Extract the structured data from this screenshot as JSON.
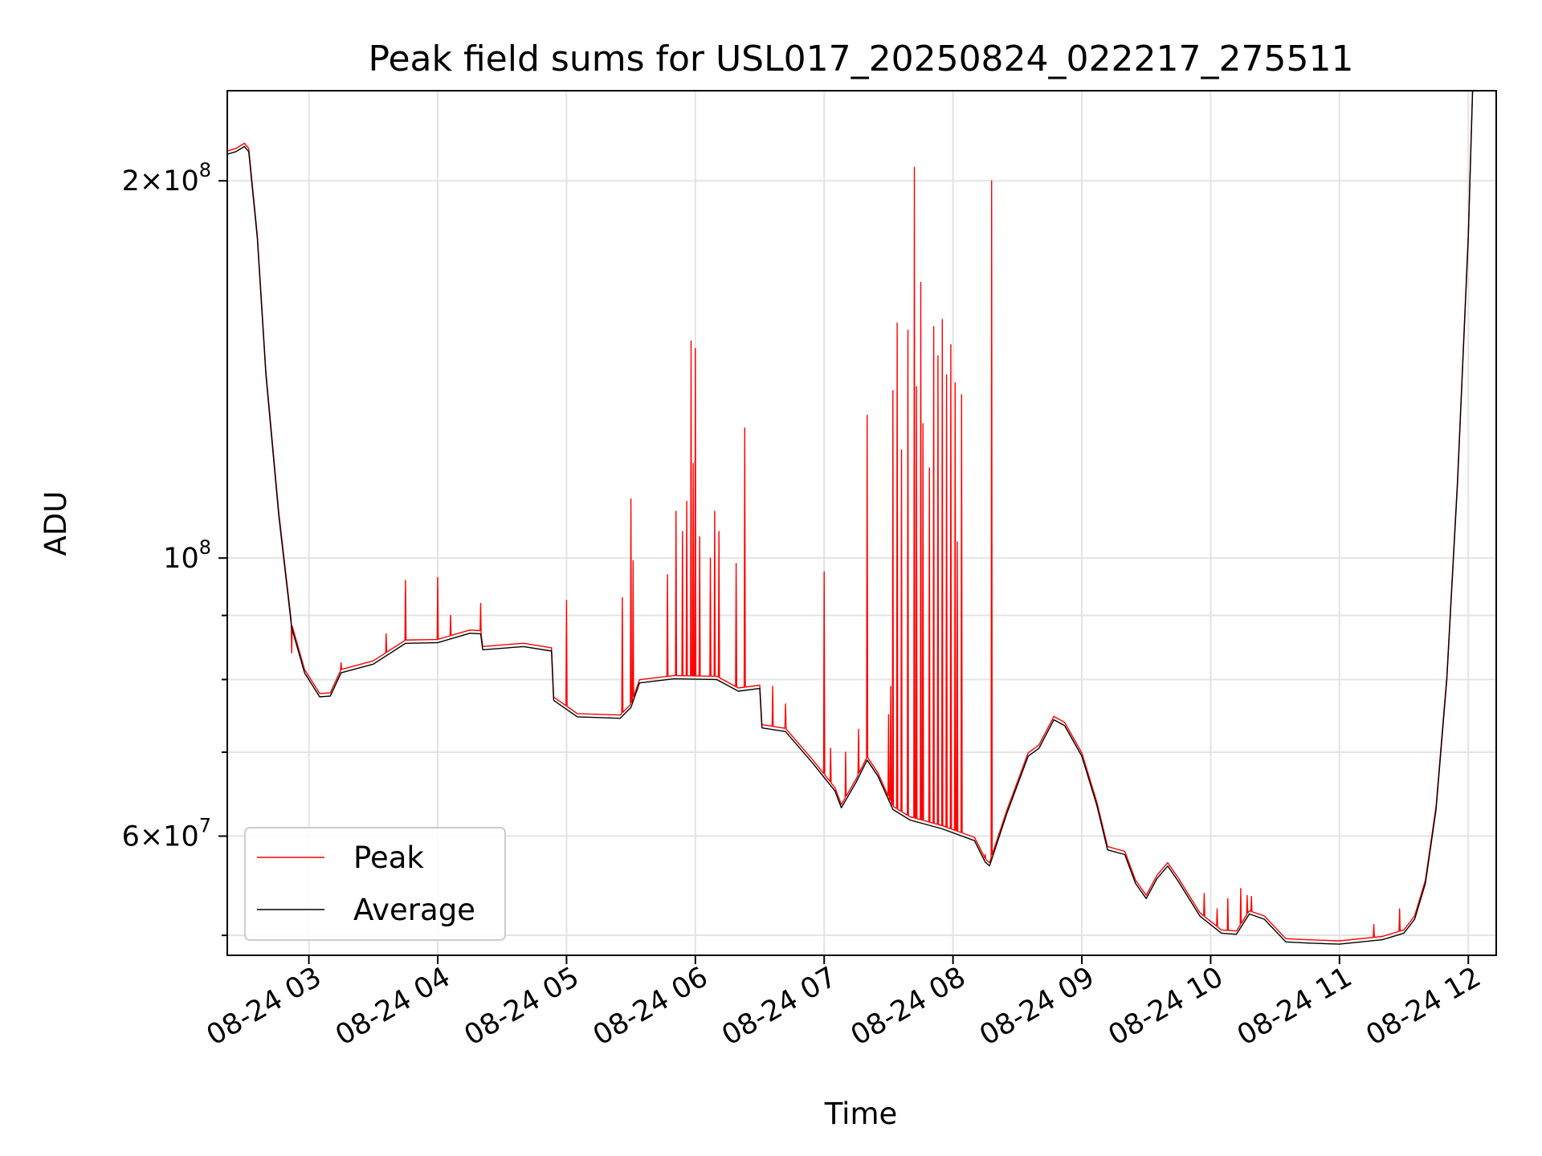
{
  "chart_data": {
    "type": "line",
    "title": "Peak field sums for USL017_20250824_022217_275511",
    "xlabel": "Time",
    "ylabel": "ADU",
    "yscale": "log",
    "grid": true,
    "legend_position": "lower-left",
    "xlim": [
      "2025-08-24 02:22",
      "2025-08-24 12:13"
    ],
    "ylim": [
      48200000,
      236000000
    ],
    "x_ticks": [
      {
        "t": "2025-08-24 03:00",
        "label": "08-24 03"
      },
      {
        "t": "2025-08-24 04:00",
        "label": "08-24 04"
      },
      {
        "t": "2025-08-24 05:00",
        "label": "08-24 05"
      },
      {
        "t": "2025-08-24 06:00",
        "label": "08-24 06"
      },
      {
        "t": "2025-08-24 07:00",
        "label": "08-24 07"
      },
      {
        "t": "2025-08-24 08:00",
        "label": "08-24 08"
      },
      {
        "t": "2025-08-24 09:00",
        "label": "08-24 09"
      },
      {
        "t": "2025-08-24 10:00",
        "label": "08-24 10"
      },
      {
        "t": "2025-08-24 11:00",
        "label": "08-24 11"
      },
      {
        "t": "2025-08-24 12:00",
        "label": "08-24 12"
      }
    ],
    "y_major_ticks": [
      {
        "value": 60000000,
        "mant": "6",
        "exp": "7"
      },
      {
        "value": 100000000,
        "mant": "",
        "exp": "8"
      },
      {
        "value": 200000000,
        "mant": "2",
        "exp": "8"
      }
    ],
    "y_minor_ticks": [
      50000000,
      70000000,
      80000000,
      90000000
    ],
    "series": [
      {
        "name": "Average",
        "color": "#000000",
        "points": [
          [
            "2025-08-24 02:22",
            210000000
          ],
          [
            "2025-08-24 02:26",
            211000000
          ],
          [
            "2025-08-24 02:30",
            213000000
          ],
          [
            "2025-08-24 02:32",
            211000000
          ],
          [
            "2025-08-24 02:36",
            180000000
          ],
          [
            "2025-08-24 02:40",
            140000000
          ],
          [
            "2025-08-24 02:46",
            108000000
          ],
          [
            "2025-08-24 02:52",
            88000000
          ],
          [
            "2025-08-24 02:58",
            81000000
          ],
          [
            "2025-08-24 03:05",
            77500000
          ],
          [
            "2025-08-24 03:10",
            77600000
          ],
          [
            "2025-08-24 03:15",
            81000000
          ],
          [
            "2025-08-24 03:30",
            82300000
          ],
          [
            "2025-08-24 03:45",
            85500000
          ],
          [
            "2025-08-24 04:00",
            85600000
          ],
          [
            "2025-08-24 04:15",
            87100000
          ],
          [
            "2025-08-24 04:20",
            87000000
          ],
          [
            "2025-08-24 04:21",
            84500000
          ],
          [
            "2025-08-24 04:40",
            85000000
          ],
          [
            "2025-08-24 04:53",
            84300000
          ],
          [
            "2025-08-24 04:54",
            77000000
          ],
          [
            "2025-08-24 05:05",
            74700000
          ],
          [
            "2025-08-24 05:25",
            74500000
          ],
          [
            "2025-08-24 05:30",
            76000000
          ],
          [
            "2025-08-24 05:34",
            79500000
          ],
          [
            "2025-08-24 05:50",
            80100000
          ],
          [
            "2025-08-24 06:10",
            80000000
          ],
          [
            "2025-08-24 06:20",
            78300000
          ],
          [
            "2025-08-24 06:30",
            78700000
          ],
          [
            "2025-08-24 06:31",
            73200000
          ],
          [
            "2025-08-24 06:42",
            72700000
          ],
          [
            "2025-08-24 06:55",
            68500000
          ],
          [
            "2025-08-24 07:05",
            65200000
          ],
          [
            "2025-08-24 07:08",
            63200000
          ],
          [
            "2025-08-24 07:15",
            66300000
          ],
          [
            "2025-08-24 07:20",
            69000000
          ],
          [
            "2025-08-24 07:25",
            67000000
          ],
          [
            "2025-08-24 07:32",
            63000000
          ],
          [
            "2025-08-24 07:40",
            61800000
          ],
          [
            "2025-08-24 07:55",
            60800000
          ],
          [
            "2025-08-24 08:10",
            59500000
          ],
          [
            "2025-08-24 08:15",
            57200000
          ],
          [
            "2025-08-24 08:17",
            56800000
          ],
          [
            "2025-08-24 08:25",
            62500000
          ],
          [
            "2025-08-24 08:35",
            69500000
          ],
          [
            "2025-08-24 08:40",
            70500000
          ],
          [
            "2025-08-24 08:47",
            74300000
          ],
          [
            "2025-08-24 08:52",
            73500000
          ],
          [
            "2025-08-24 09:00",
            69500000
          ],
          [
            "2025-08-24 09:07",
            63500000
          ],
          [
            "2025-08-24 09:12",
            58500000
          ],
          [
            "2025-08-24 09:20",
            58000000
          ],
          [
            "2025-08-24 09:25",
            55000000
          ],
          [
            "2025-08-24 09:30",
            53500000
          ],
          [
            "2025-08-24 09:35",
            55500000
          ],
          [
            "2025-08-24 09:40",
            56800000
          ],
          [
            "2025-08-24 09:45",
            55200000
          ],
          [
            "2025-08-24 09:55",
            51800000
          ],
          [
            "2025-08-24 10:05",
            50200000
          ],
          [
            "2025-08-24 10:12",
            50100000
          ],
          [
            "2025-08-24 10:18",
            52000000
          ],
          [
            "2025-08-24 10:25",
            51500000
          ],
          [
            "2025-08-24 10:35",
            49400000
          ],
          [
            "2025-08-24 10:45",
            49300000
          ],
          [
            "2025-08-24 11:00",
            49200000
          ],
          [
            "2025-08-24 11:20",
            49600000
          ],
          [
            "2025-08-24 11:30",
            50200000
          ],
          [
            "2025-08-24 11:35",
            51500000
          ],
          [
            "2025-08-24 11:40",
            55000000
          ],
          [
            "2025-08-24 11:45",
            63000000
          ],
          [
            "2025-08-24 11:50",
            80000000
          ],
          [
            "2025-08-24 11:55",
            115000000
          ],
          [
            "2025-08-24 12:00",
            180000000
          ],
          [
            "2025-08-24 12:02",
            236000000
          ]
        ]
      },
      {
        "name": "Peak",
        "color": "#ff0000",
        "spikes": [
          [
            "2025-08-24 02:52",
            84000000
          ],
          [
            "2025-08-24 03:15",
            82500000
          ],
          [
            "2025-08-24 03:36",
            87000000
          ],
          [
            "2025-08-24 03:45",
            96000000
          ],
          [
            "2025-08-24 04:00",
            96500000
          ],
          [
            "2025-08-24 04:06",
            90000000
          ],
          [
            "2025-08-24 04:20",
            92000000
          ],
          [
            "2025-08-24 05:00",
            92500000
          ],
          [
            "2025-08-24 05:26",
            93000000
          ],
          [
            "2025-08-24 05:30",
            111500000
          ],
          [
            "2025-08-24 05:31",
            99500000
          ],
          [
            "2025-08-24 05:47",
            97000000
          ],
          [
            "2025-08-24 05:51",
            109000000
          ],
          [
            "2025-08-24 05:54",
            105000000
          ],
          [
            "2025-08-24 05:56",
            111000000
          ],
          [
            "2025-08-24 05:58",
            149000000
          ],
          [
            "2025-08-24 05:59",
            119000000
          ],
          [
            "2025-08-24 06:00",
            147000000
          ],
          [
            "2025-08-24 06:02",
            104000000
          ],
          [
            "2025-08-24 06:07",
            100000000
          ],
          [
            "2025-08-24 06:09",
            109000000
          ],
          [
            "2025-08-24 06:11",
            105000000
          ],
          [
            "2025-08-24 06:19",
            99000000
          ],
          [
            "2025-08-24 06:23",
            127000000
          ],
          [
            "2025-08-24 06:36",
            79000000
          ],
          [
            "2025-08-24 06:42",
            76500000
          ],
          [
            "2025-08-24 07:00",
            97500000
          ],
          [
            "2025-08-24 07:03",
            70500000
          ],
          [
            "2025-08-24 07:10",
            70000000
          ],
          [
            "2025-08-24 07:16",
            73000000
          ],
          [
            "2025-08-24 07:20",
            130000000
          ],
          [
            "2025-08-24 07:30",
            75000000
          ],
          [
            "2025-08-24 07:31",
            79000000
          ],
          [
            "2025-08-24 07:32",
            136000000
          ],
          [
            "2025-08-24 07:34",
            154000000
          ],
          [
            "2025-08-24 07:36",
            122000000
          ],
          [
            "2025-08-24 07:39",
            152000000
          ],
          [
            "2025-08-24 07:42",
            205000000
          ],
          [
            "2025-08-24 07:43",
            137000000
          ],
          [
            "2025-08-24 07:45",
            166000000
          ],
          [
            "2025-08-24 07:46",
            128000000
          ],
          [
            "2025-08-24 07:49",
            118000000
          ],
          [
            "2025-08-24 07:51",
            153000000
          ],
          [
            "2025-08-24 07:53",
            145000000
          ],
          [
            "2025-08-24 07:55",
            155000000
          ],
          [
            "2025-08-24 07:57",
            140000000
          ],
          [
            "2025-08-24 07:59",
            148000000
          ],
          [
            "2025-08-24 08:01",
            138000000
          ],
          [
            "2025-08-24 08:02",
            103000000
          ],
          [
            "2025-08-24 08:04",
            135000000
          ],
          [
            "2025-08-24 08:15",
            58000000
          ],
          [
            "2025-08-24 08:18",
            200000000
          ],
          [
            "2025-08-24 09:57",
            54000000
          ],
          [
            "2025-08-24 10:03",
            52500000
          ],
          [
            "2025-08-24 10:08",
            53500000
          ],
          [
            "2025-08-24 10:14",
            54500000
          ],
          [
            "2025-08-24 10:17",
            53800000
          ],
          [
            "2025-08-24 10:19",
            53700000
          ],
          [
            "2025-08-24 11:16",
            51000000
          ],
          [
            "2025-08-24 11:28",
            52500000
          ]
        ]
      }
    ]
  }
}
